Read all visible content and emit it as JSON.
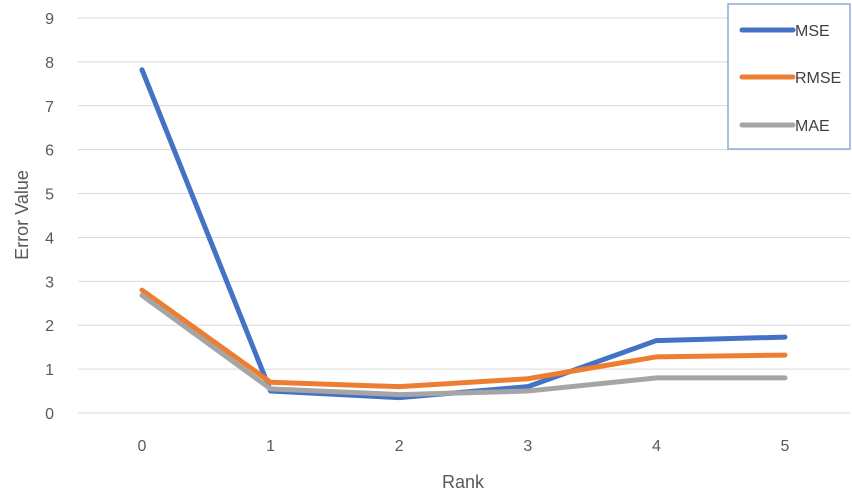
{
  "chart_data": {
    "type": "line",
    "xlabel": "Rank",
    "ylabel": "Error Value",
    "x": [
      0,
      1,
      2,
      3,
      4,
      5
    ],
    "ylim": [
      0,
      9
    ],
    "yticks": [
      0,
      1,
      2,
      3,
      4,
      5,
      6,
      7,
      8,
      9
    ],
    "grid": true,
    "legend_position": "top-right",
    "series": [
      {
        "name": "MSE",
        "color": "#4472c4",
        "values": [
          7.82,
          0.5,
          0.35,
          0.6,
          1.65,
          1.73
        ]
      },
      {
        "name": "RMSE",
        "color": "#ed7d31",
        "values": [
          2.8,
          0.7,
          0.6,
          0.78,
          1.28,
          1.32
        ]
      },
      {
        "name": "MAE",
        "color": "#a5a5a5",
        "values": [
          2.68,
          0.55,
          0.42,
          0.5,
          0.8,
          0.8
        ]
      }
    ]
  }
}
